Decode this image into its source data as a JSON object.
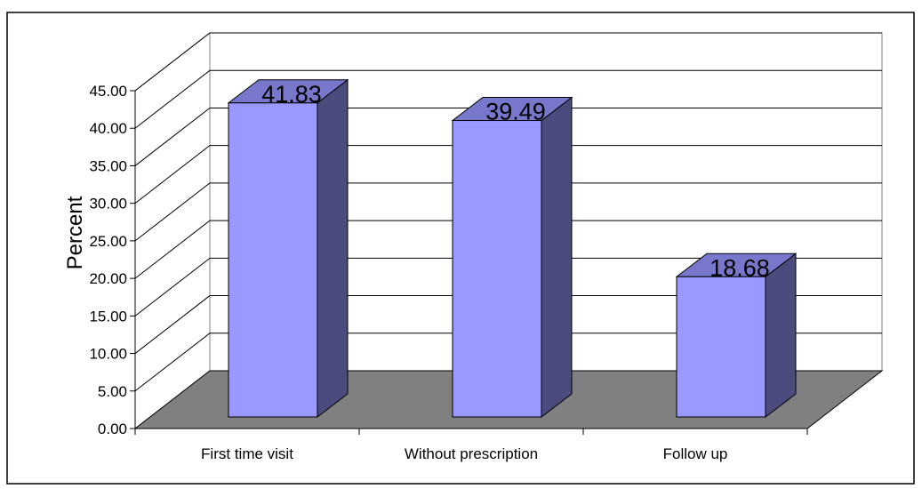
{
  "chart_data": {
    "type": "bar",
    "categories": [
      "First time visit",
      "Without prescription",
      "Follow  up"
    ],
    "values": [
      41.83,
      39.49,
      18.68
    ],
    "data_labels": [
      "41.83",
      "39.49",
      "18.68"
    ],
    "title": "",
    "xlabel": "",
    "ylabel": "Percent",
    "ylim": [
      0,
      45
    ],
    "y_ticks": [
      "0.00",
      "5.00",
      "10.00",
      "15.00",
      "20.00",
      "25.00",
      "30.00",
      "35.00",
      "40.00",
      "45.00"
    ],
    "grid": true,
    "legend": "none",
    "style": "3d-column",
    "colors": {
      "bar_front": "#9999ff",
      "bar_side": "#4b4b7d",
      "bar_top": "#7777cc",
      "floor": "#808080",
      "gridline": "#000000"
    }
  }
}
